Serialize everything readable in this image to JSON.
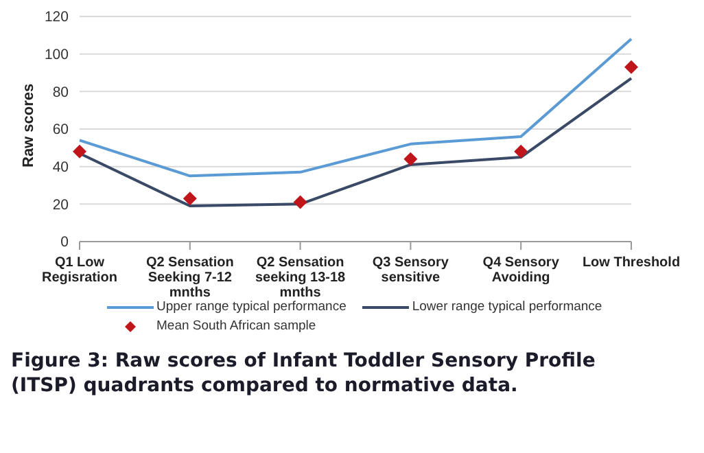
{
  "chart_data": {
    "type": "line",
    "title": "Figure 3: Raw scores of Infant Toddler Sensory Profile (ITSP) quadrants compared to normative data.",
    "ylabel": "Raw scores",
    "categories": [
      "Q1 Low Regisration",
      "Q2 Sensation Seeking 7-12 mnths",
      "Q2 Sensation seeking 13-18 mnths",
      "Q3 Sensory sensitive",
      "Q4 Sensory Avoiding",
      "Low Threshold"
    ],
    "series": [
      {
        "name": "Upper range typical performance",
        "color": "#5b9bd5",
        "marker": "none",
        "values": [
          54,
          35,
          37,
          52,
          56,
          108
        ]
      },
      {
        "name": "Lower range typical performance",
        "color": "#3a4a66",
        "marker": "none",
        "values": [
          47,
          19,
          20,
          41,
          45,
          87
        ]
      },
      {
        "name": "Mean South African sample",
        "type": "scatter",
        "color": "#c0151b",
        "marker": "diamond",
        "values": [
          48,
          23,
          21,
          44,
          48,
          93
        ]
      }
    ],
    "ylim": [
      0,
      120
    ],
    "yticks": [
      0,
      20,
      40,
      60,
      80,
      100,
      120
    ],
    "grid": "y",
    "legend": "bottom"
  }
}
